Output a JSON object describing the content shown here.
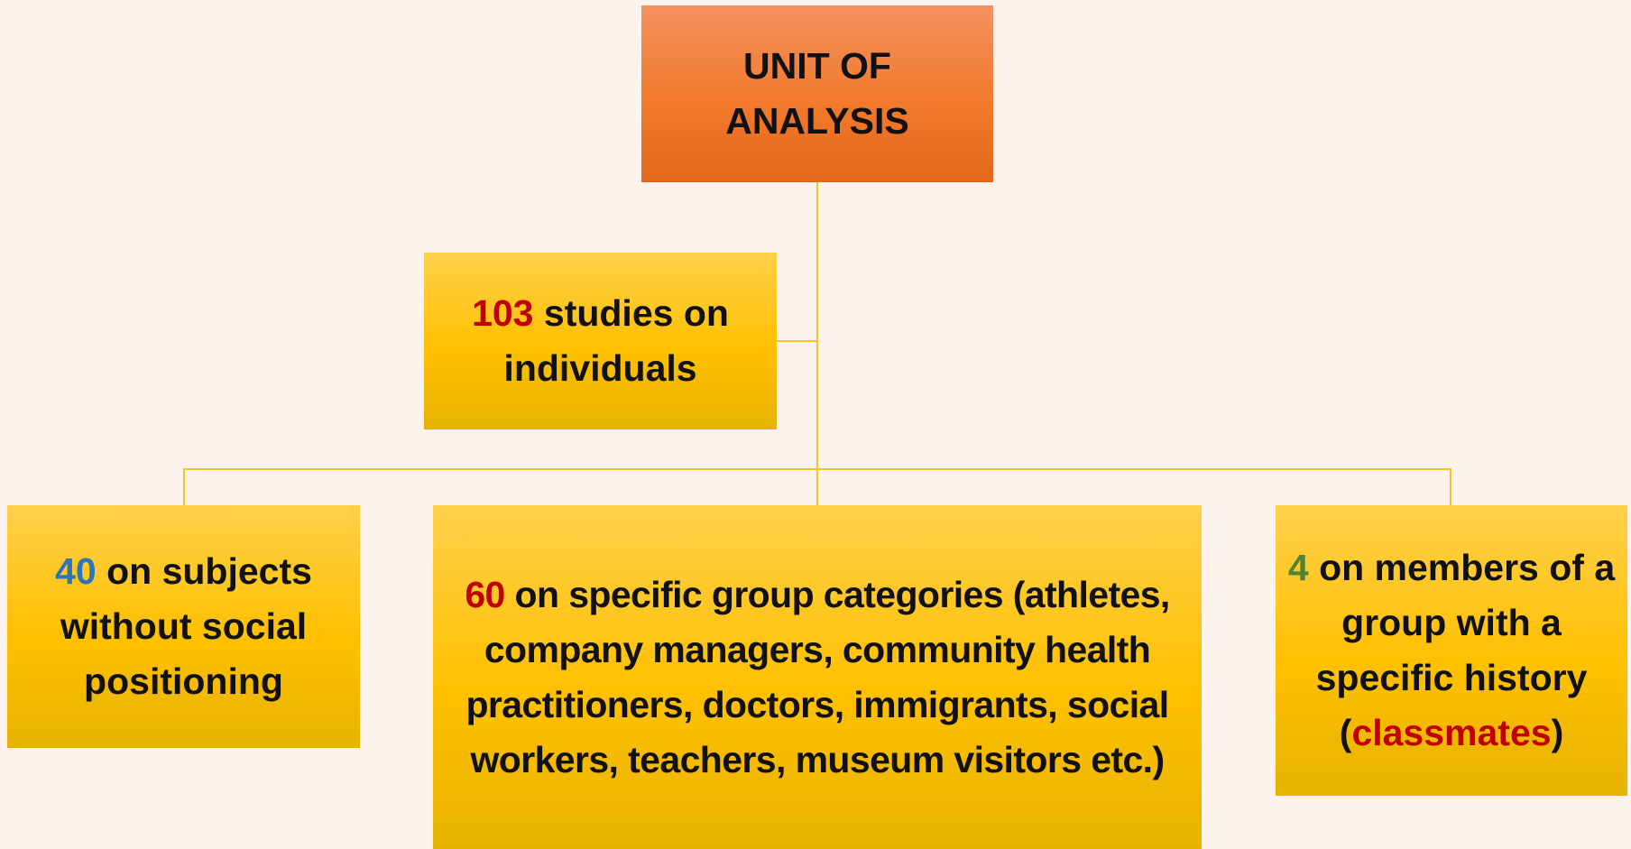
{
  "root": {
    "label": "UNIT OF ANALYSIS"
  },
  "individuals": {
    "count": "103",
    "text": "studies on individuals"
  },
  "children": [
    {
      "count": "40",
      "text": "on subjects without social positioning"
    },
    {
      "count": "60",
      "text": "on specific group categories (athletes, company managers, community health practitioners, doctors, immigrants, social workers, teachers, museum visitors etc.)"
    },
    {
      "count": "4",
      "text_before": "on members of a group with a specific history (",
      "highlight": "classmates",
      "text_after": ")"
    }
  ]
}
